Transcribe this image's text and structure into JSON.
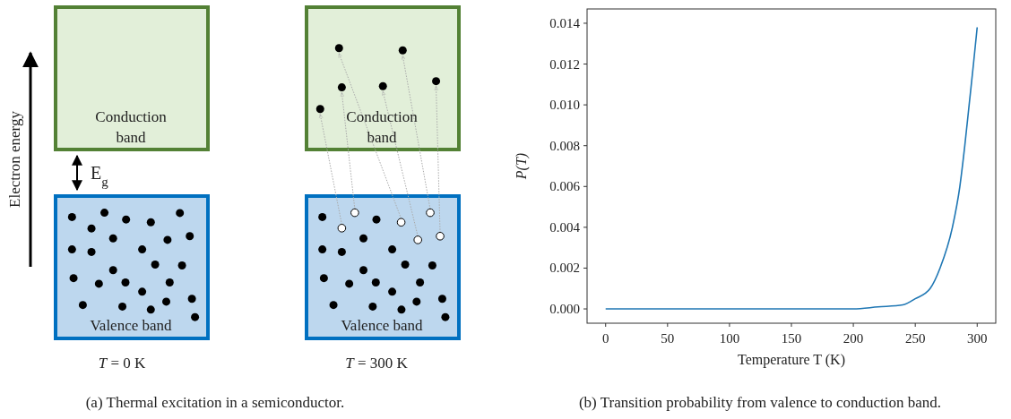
{
  "chart_data": [
    {
      "type": "other",
      "annotations": [
        "Electron energy",
        "E$_{g}$",
        "Conduction band",
        "Valence band",
        "T = 0 K",
        "Conduction band",
        "Valence band",
        "T = 300 K",
        "(a) Thermal excitation in a semiconductor."
      ]
    },
    {
      "type": "line",
      "xlabel": "Temperature T (K)",
      "ylabel": "P(T)",
      "annotations": [
        "(b) Transition probability from valence to conduction band."
      ],
      "xlim": [
        -15,
        315
      ],
      "xticks": [
        0,
        50,
        100,
        150,
        200,
        250,
        300
      ],
      "ylim": [
        -0.0007,
        0.0147
      ],
      "yticks": [
        {
          "value": 0,
          "label": "0.000"
        },
        {
          "value": 0.002,
          "label": "0.002"
        },
        {
          "value": 0.004,
          "label": "0.004"
        },
        {
          "value": 0.006,
          "label": "0.006"
        },
        {
          "value": 0.008,
          "label": "0.008"
        },
        {
          "value": 0.01,
          "label": "0.010"
        },
        {
          "value": 0.012,
          "label": "0.012"
        },
        {
          "value": 0.014,
          "label": "0.014"
        }
      ],
      "grid": false,
      "series": [
        {
          "color": "#1f77b4",
          "x": [
            0,
            50,
            100,
            150,
            200,
            220,
            240,
            250,
            262,
            270,
            280,
            286,
            290,
            293.5,
            297,
            300
          ],
          "values": [
            0,
            0,
            0,
            0,
            0,
            0.0001,
            0.0002,
            0.0005,
            0.001,
            0.002,
            0.004,
            0.006,
            0.008,
            0.01,
            0.012,
            0.0138
          ]
        }
      ]
    }
  ]
}
